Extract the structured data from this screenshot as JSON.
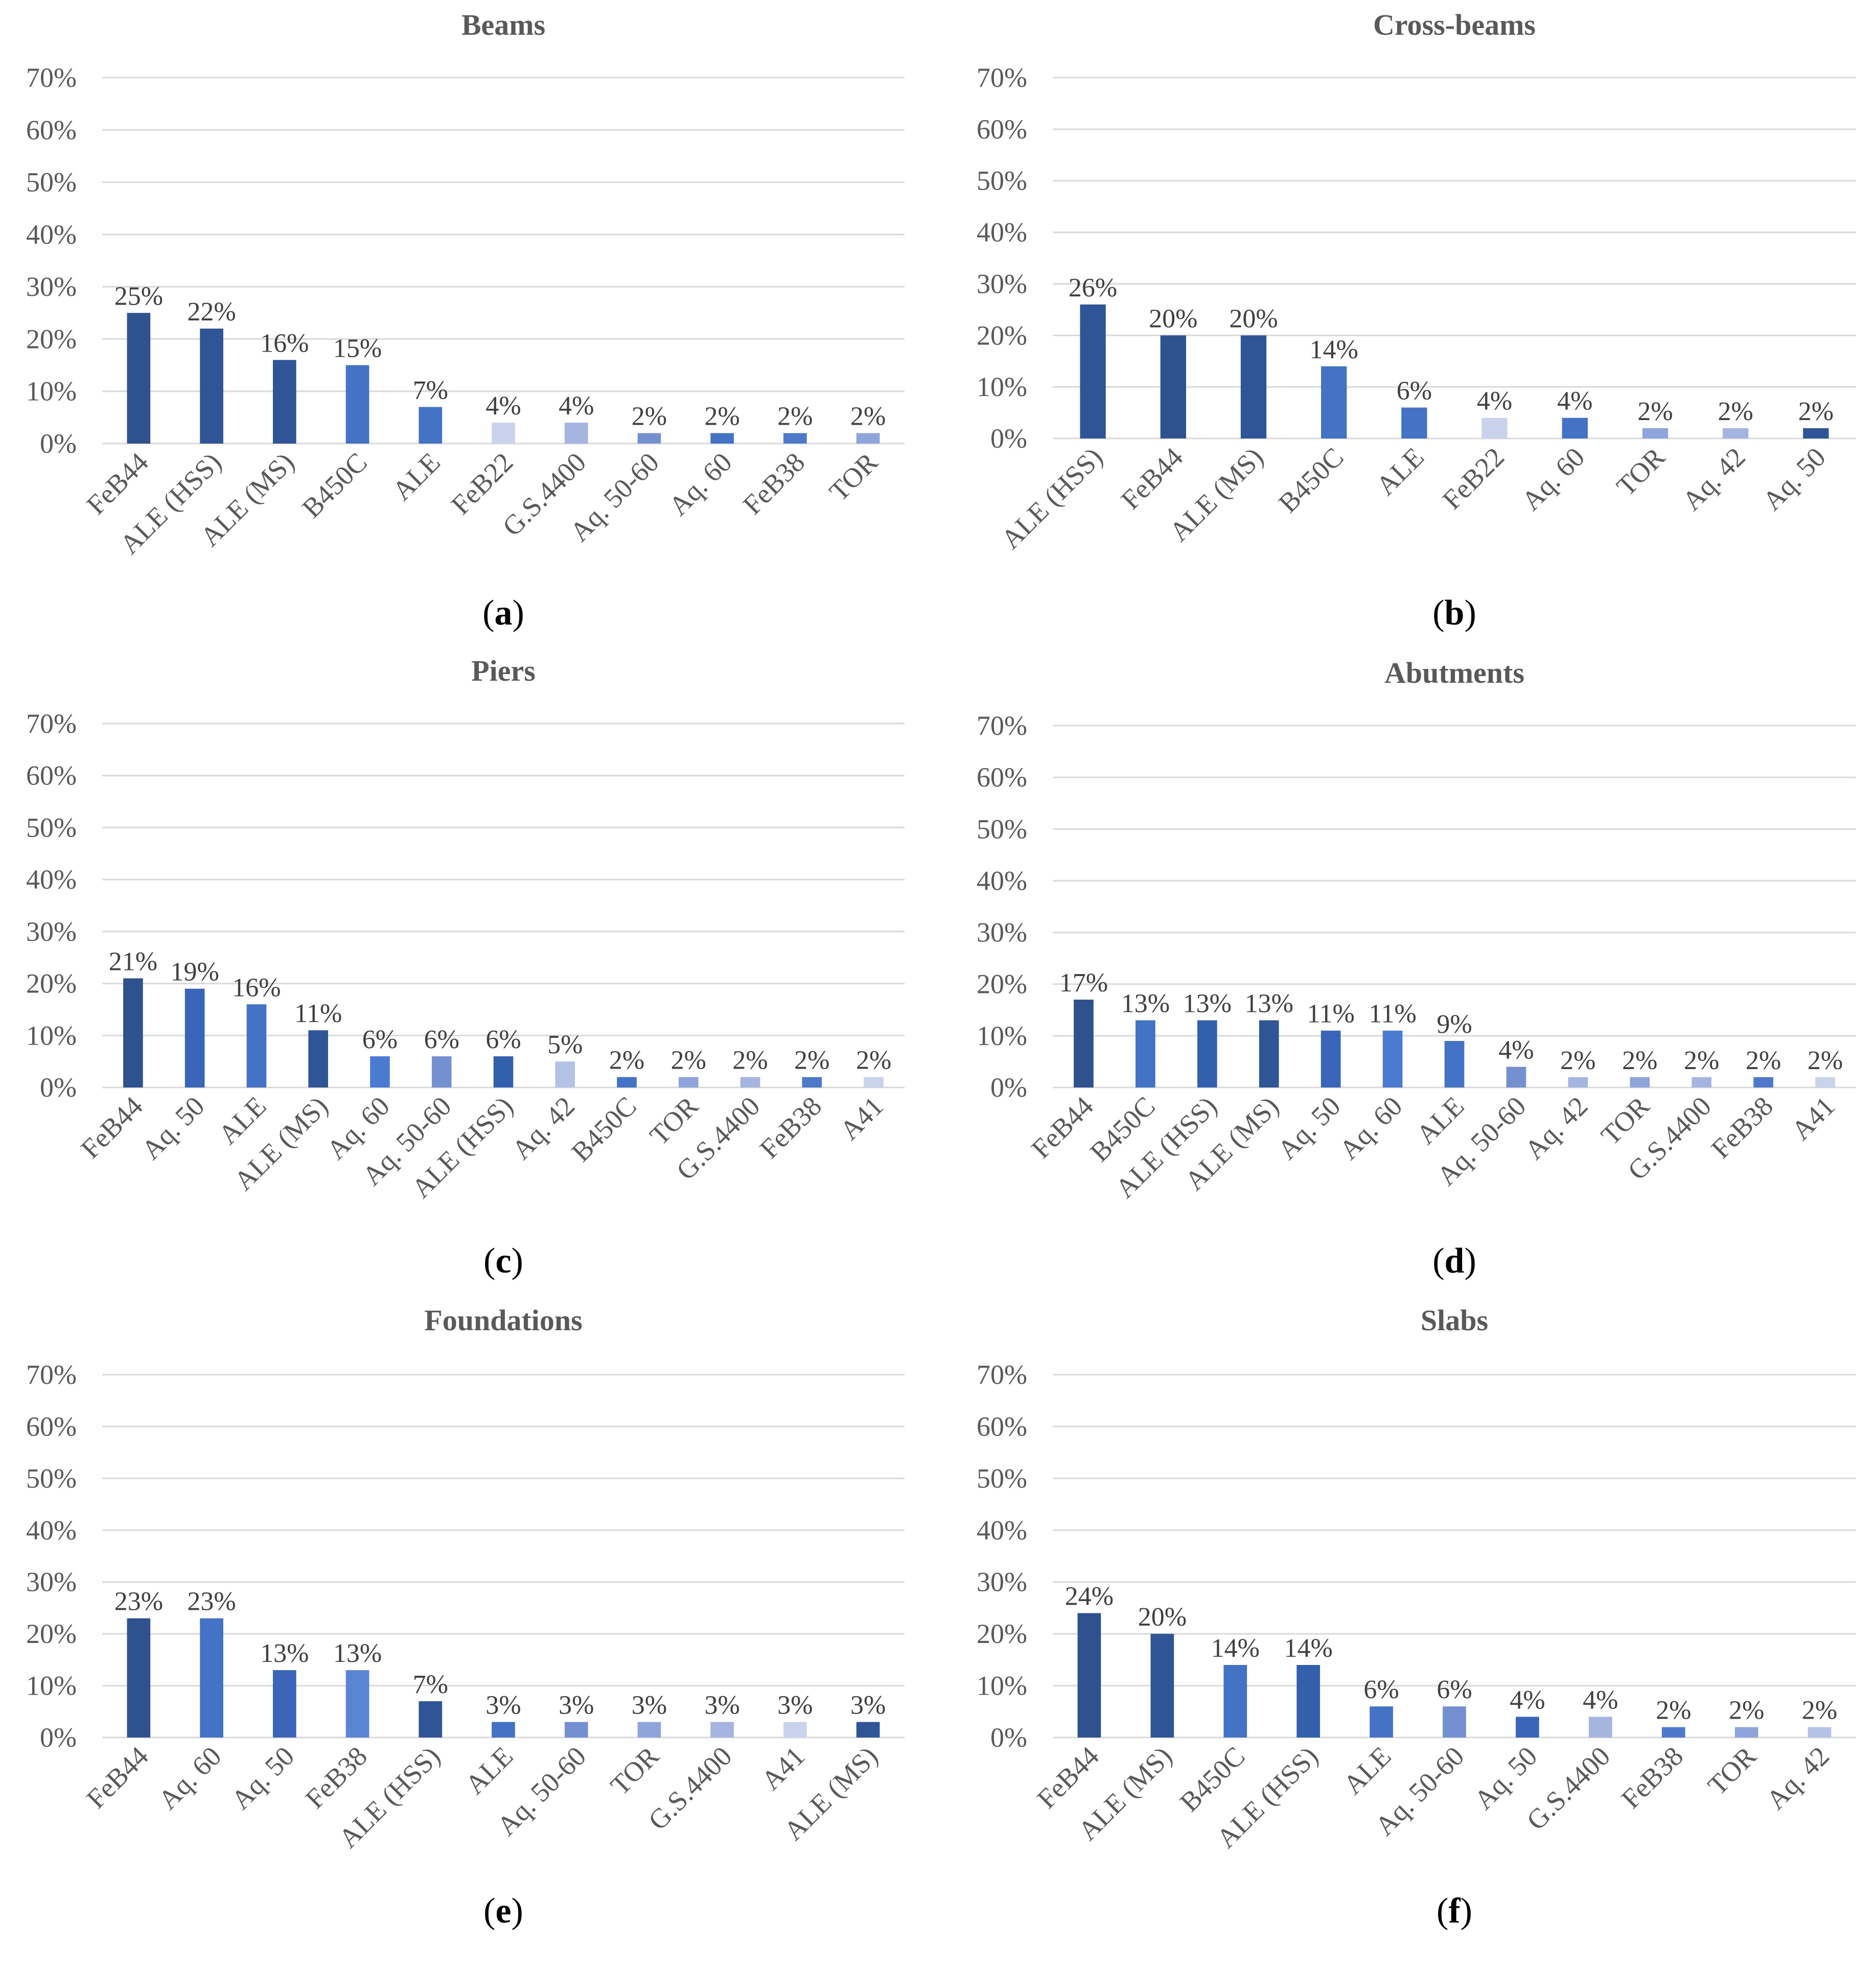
{
  "chart_data": [
    {
      "type": "bar",
      "title": "Beams",
      "caption_letter": "a",
      "categories": [
        "FeB44",
        "ALE (HSS)",
        "ALE (MS)",
        "B450C",
        "ALE",
        "FeB22",
        "G.S.4400",
        "Aq. 50-60",
        "Aq. 60",
        "FeB38",
        "TOR"
      ],
      "values": [
        25,
        22,
        16,
        15,
        7,
        4,
        4,
        2,
        2,
        2,
        2
      ],
      "labels": [
        "25%",
        "22%",
        "16%",
        "15%",
        "7%",
        "4%",
        "4%",
        "2%",
        "2%",
        "2%",
        "2%"
      ],
      "colors": [
        "#2f528f",
        "#2f5597",
        "#2f5597",
        "#4472c4",
        "#4472c4",
        "#c9d3ec",
        "#a5b5e0",
        "#7590d1",
        "#4472c4",
        "#4e79cb",
        "#8ea5db"
      ],
      "yticks": [
        "0%",
        "10%",
        "20%",
        "30%",
        "40%",
        "50%",
        "60%",
        "70%"
      ],
      "ylim": [
        0,
        70
      ],
      "xlabel": "",
      "ylabel": "",
      "grid": true,
      "legend": "none"
    },
    {
      "type": "bar",
      "title": "Cross-beams",
      "caption_letter": "b",
      "categories": [
        "ALE (HSS)",
        "FeB44",
        "ALE (MS)",
        "B450C",
        "ALE",
        "FeB22",
        "Aq. 60",
        "TOR",
        "Aq. 42",
        "Aq. 50"
      ],
      "values": [
        26,
        20,
        20,
        14,
        6,
        4,
        4,
        2,
        2,
        2
      ],
      "labels": [
        "26%",
        "20%",
        "20%",
        "14%",
        "6%",
        "4%",
        "4%",
        "2%",
        "2%",
        "2%"
      ],
      "colors": [
        "#2f5597",
        "#2f528f",
        "#2f5597",
        "#4472c4",
        "#4472c4",
        "#c9d3ec",
        "#4472c4",
        "#8ea5db",
        "#a5b5e0",
        "#2f5597"
      ],
      "yticks": [
        "0%",
        "10%",
        "20%",
        "30%",
        "40%",
        "50%",
        "60%",
        "70%"
      ],
      "ylim": [
        0,
        70
      ],
      "xlabel": "",
      "ylabel": "",
      "grid": true,
      "legend": "none"
    },
    {
      "type": "bar",
      "title": "Piers",
      "caption_letter": "c",
      "categories": [
        "FeB44",
        "Aq. 50",
        "ALE",
        "ALE (MS)",
        "Aq. 60",
        "Aq. 50-60",
        "ALE (HSS)",
        "Aq. 42",
        "B450C",
        "TOR",
        "G.S.4400",
        "FeB38",
        "A41"
      ],
      "values": [
        21,
        19,
        16,
        11,
        6,
        6,
        6,
        5,
        2,
        2,
        2,
        2,
        2
      ],
      "labels": [
        "21%",
        "19%",
        "16%",
        "11%",
        "6%",
        "6%",
        "6%",
        "5%",
        "2%",
        "2%",
        "2%",
        "2%",
        "2%"
      ],
      "colors": [
        "#2f528f",
        "#3a65b8",
        "#4472c4",
        "#2f5597",
        "#4a7bd1",
        "#7590d1",
        "#3360ad",
        "#b4c2e6",
        "#4472c4",
        "#8ea5db",
        "#a5b5e0",
        "#4e79cb",
        "#c9d3ec"
      ],
      "yticks": [
        "0%",
        "10%",
        "20%",
        "30%",
        "40%",
        "50%",
        "60%",
        "70%"
      ],
      "ylim": [
        0,
        70
      ],
      "xlabel": "",
      "ylabel": "",
      "grid": true,
      "legend": "none"
    },
    {
      "type": "bar",
      "title": "Abutments",
      "caption_letter": "d",
      "categories": [
        "FeB44",
        "B450C",
        "ALE (HSS)",
        "ALE (MS)",
        "Aq. 50",
        "Aq. 60",
        "ALE",
        "Aq. 50-60",
        "Aq. 42",
        "TOR",
        "G.S.4400",
        "FeB38",
        "A41"
      ],
      "values": [
        17,
        13,
        13,
        13,
        11,
        11,
        9,
        4,
        2,
        2,
        2,
        2,
        2
      ],
      "labels": [
        "17%",
        "13%",
        "13%",
        "13%",
        "11%",
        "11%",
        "9%",
        "4%",
        "2%",
        "2%",
        "2%",
        "2%",
        "2%"
      ],
      "colors": [
        "#2f528f",
        "#4472c4",
        "#3360ad",
        "#2f5597",
        "#3a65b8",
        "#4a7bd1",
        "#4472c4",
        "#7590d1",
        "#a5b5e0",
        "#8ea5db",
        "#a5b5e0",
        "#4e79cb",
        "#c9d3ec"
      ],
      "yticks": [
        "0%",
        "10%",
        "20%",
        "30%",
        "40%",
        "50%",
        "60%",
        "70%"
      ],
      "ylim": [
        0,
        70
      ],
      "xlabel": "",
      "ylabel": "",
      "grid": true,
      "legend": "none"
    },
    {
      "type": "bar",
      "title": "Foundations",
      "caption_letter": "e",
      "categories": [
        "FeB44",
        "Aq. 60",
        "Aq. 50",
        "FeB38",
        "ALE (HSS)",
        "ALE",
        "Aq. 50-60",
        "TOR",
        "G.S.4400",
        "A41",
        "ALE (MS)"
      ],
      "values": [
        23,
        23,
        13,
        13,
        7,
        3,
        3,
        3,
        3,
        3,
        3
      ],
      "labels": [
        "23%",
        "23%",
        "13%",
        "13%",
        "7%",
        "3%",
        "3%",
        "3%",
        "3%",
        "3%",
        "3%"
      ],
      "colors": [
        "#2f528f",
        "#4472c4",
        "#3a65b8",
        "#5b84d4",
        "#2f5597",
        "#4472c4",
        "#7590d1",
        "#8ea5db",
        "#a5b5e0",
        "#c9d3ec",
        "#2f5597"
      ],
      "yticks": [
        "0%",
        "10%",
        "20%",
        "30%",
        "40%",
        "50%",
        "60%",
        "70%"
      ],
      "ylim": [
        0,
        70
      ],
      "xlabel": "",
      "ylabel": "",
      "grid": true,
      "legend": "none"
    },
    {
      "type": "bar",
      "title": "Slabs",
      "caption_letter": "f",
      "categories": [
        "FeB44",
        "ALE (MS)",
        "B450C",
        "ALE (HSS)",
        "ALE",
        "Aq. 50-60",
        "Aq. 50",
        "G.S.4400",
        "FeB38",
        "TOR",
        "Aq. 42"
      ],
      "values": [
        24,
        20,
        14,
        14,
        6,
        6,
        4,
        4,
        2,
        2,
        2
      ],
      "labels": [
        "24%",
        "20%",
        "14%",
        "14%",
        "6%",
        "6%",
        "4%",
        "4%",
        "2%",
        "2%",
        "2%"
      ],
      "colors": [
        "#2f528f",
        "#2f5597",
        "#4472c4",
        "#3360ad",
        "#4472c4",
        "#7590d1",
        "#3a65b8",
        "#a5b5e0",
        "#4e79cb",
        "#8ea5db",
        "#b4c2e6"
      ],
      "yticks": [
        "0%",
        "10%",
        "20%",
        "30%",
        "40%",
        "50%",
        "60%",
        "70%"
      ],
      "ylim": [
        0,
        70
      ],
      "xlabel": "",
      "ylabel": "",
      "grid": true,
      "legend": "none"
    }
  ]
}
